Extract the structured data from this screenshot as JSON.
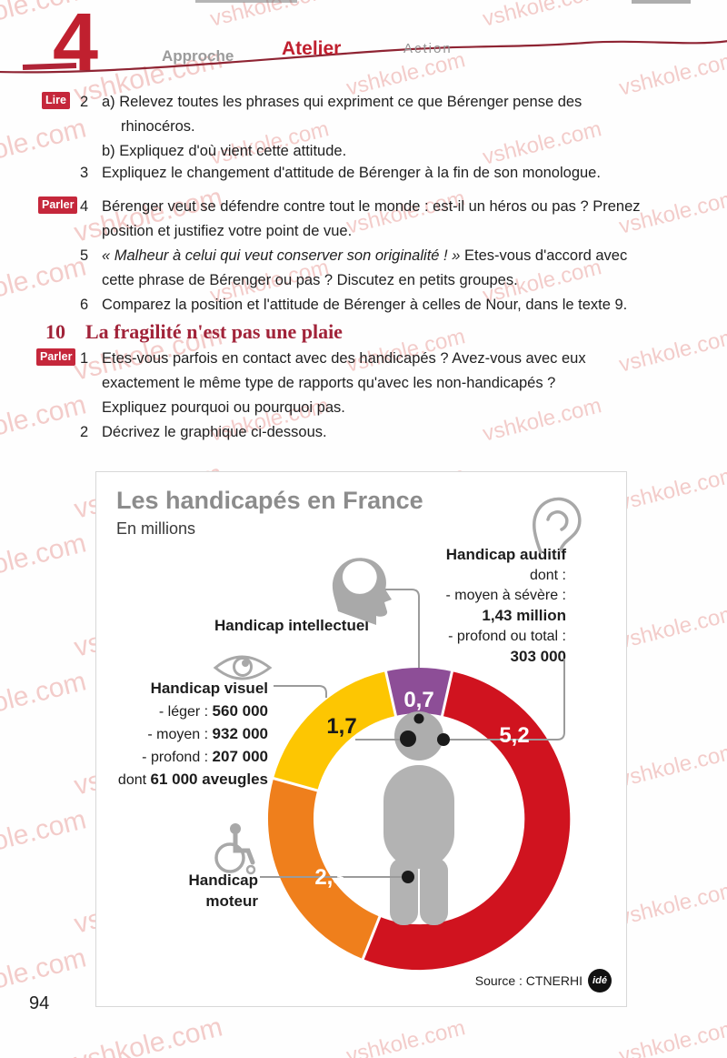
{
  "watermark": {
    "text": "vshkole.com"
  },
  "header": {
    "unit_number": "4",
    "tabs": [
      {
        "label": "Approche"
      },
      {
        "label": "Atelier"
      },
      {
        "label": "Action"
      }
    ]
  },
  "section1": {
    "item2": {
      "badge": "Lire",
      "num": "2",
      "a": "a) Relevez toutes les phrases qui expriment ce que Bérenger pense des rhinocéros.",
      "b": "b) Expliquez d'où vient cette attitude."
    },
    "item3": {
      "num": "3",
      "text": "Expliquez le changement d'attitude de Bérenger à la fin de son monologue."
    },
    "item4": {
      "badge": "Parler",
      "num": "4",
      "text": "Bérenger veut se défendre contre tout le monde : est-il un héros ou pas ? Prenez position et justifiez votre point de vue."
    },
    "item5": {
      "num": "5",
      "quote": "« Malheur à celui qui veut conserver son originalité ! »",
      "text": " Etes-vous d'accord avec cette phrase de Bérenger ou pas ? Discutez en petits groupes."
    },
    "item6": {
      "num": "6",
      "text": "Comparez la position et l'attitude de Bérenger à celles de Nour, dans le texte 9."
    }
  },
  "section10": {
    "num": "10",
    "title": "La fragilité n'est pas une plaie",
    "item1": {
      "badge": "Parler",
      "num": "1",
      "text": "Etes-vous parfois en contact avec des handicapés ? Avez-vous avec eux exactement le même type de rapports qu'avec les non-handicapés ? Expliquez pourquoi ou pourquoi pas."
    },
    "item2": {
      "num": "2",
      "text": "Décrivez le graphique ci-dessous."
    }
  },
  "chart": {
    "title": "Les handicapés en France",
    "subtitle": "En millions",
    "auditif": {
      "label": "Handicap auditif",
      "l1": "dont :",
      "l2": "- moyen à sévère :",
      "l2_val": "1,43 million",
      "l3": "- profond ou total :",
      "l3_val": "303 000"
    },
    "intellectuel": {
      "label": "Handicap intellectuel"
    },
    "visuel": {
      "label": "Handicap visuel",
      "l1_pre": "- léger : ",
      "l1_val": "560 000",
      "l2_pre": "- moyen : ",
      "l2_val": "932 000",
      "l3_pre": "- profond : ",
      "l3_val": "207 000",
      "l4_pre": "dont ",
      "l4_val": "61 000 aveugles"
    },
    "moteur": {
      "label1": "Handicap",
      "label2": "moteur"
    },
    "segments": {
      "intellectuel": "0,7",
      "visuel": "1,7",
      "auditif": "5,2",
      "moteur": "2,3"
    },
    "colors": {
      "auditif": "#d0131f",
      "visuel": "#fdc602",
      "moteur": "#ef7f1c",
      "intellectuel": "#8d4e97",
      "figure": "#b3b3b3",
      "accent_red": "#c0202f"
    },
    "source": {
      "label": "Source : CTNERHI",
      "logo": "idé"
    }
  },
  "chart_data": {
    "type": "pie",
    "title": "Les handicapés en France",
    "subtitle": "En millions",
    "unit": "millions",
    "slices": [
      {
        "label": "Handicap intellectuel",
        "value": 0.7,
        "color": "#8d4e97"
      },
      {
        "label": "Handicap auditif",
        "value": 5.2,
        "color": "#d0131f",
        "details": [
          "moyen à sévère : 1,43 million",
          "profond ou total : 303 000"
        ]
      },
      {
        "label": "Handicap moteur",
        "value": 2.3,
        "color": "#ef7f1c"
      },
      {
        "label": "Handicap visuel",
        "value": 1.7,
        "color": "#fdc602",
        "details": [
          "léger : 560 000",
          "moyen : 932 000",
          "profond : 207 000",
          "dont 61 000 aveugles"
        ]
      }
    ],
    "source": "Source : CTNERHI"
  },
  "page_number": "94"
}
